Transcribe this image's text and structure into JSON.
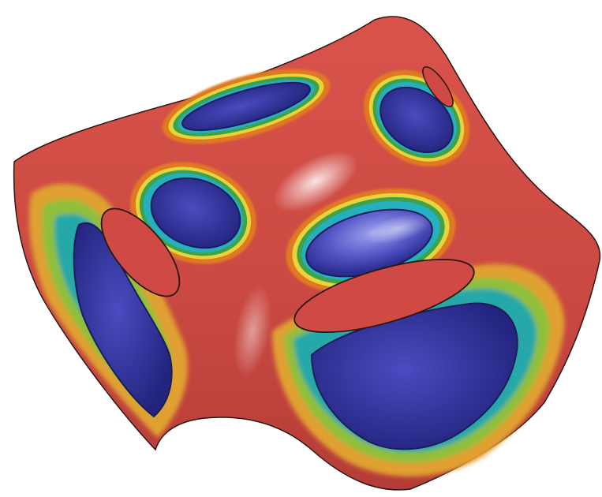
{
  "figure": {
    "description_colors": {
      "background": "#ffffff",
      "surface_base": "#cf4a44",
      "surface_shadow": "#9e2f2b",
      "contour_dark": "#3a1f18",
      "contour_orange": "#e07a20",
      "contour_yellow": "#e6d43a",
      "contour_green": "#3da24a",
      "contour_cyan": "#25b0c0",
      "low_region": "#2d2f9a",
      "low_region_highlight": "#6a6cd8"
    }
  }
}
